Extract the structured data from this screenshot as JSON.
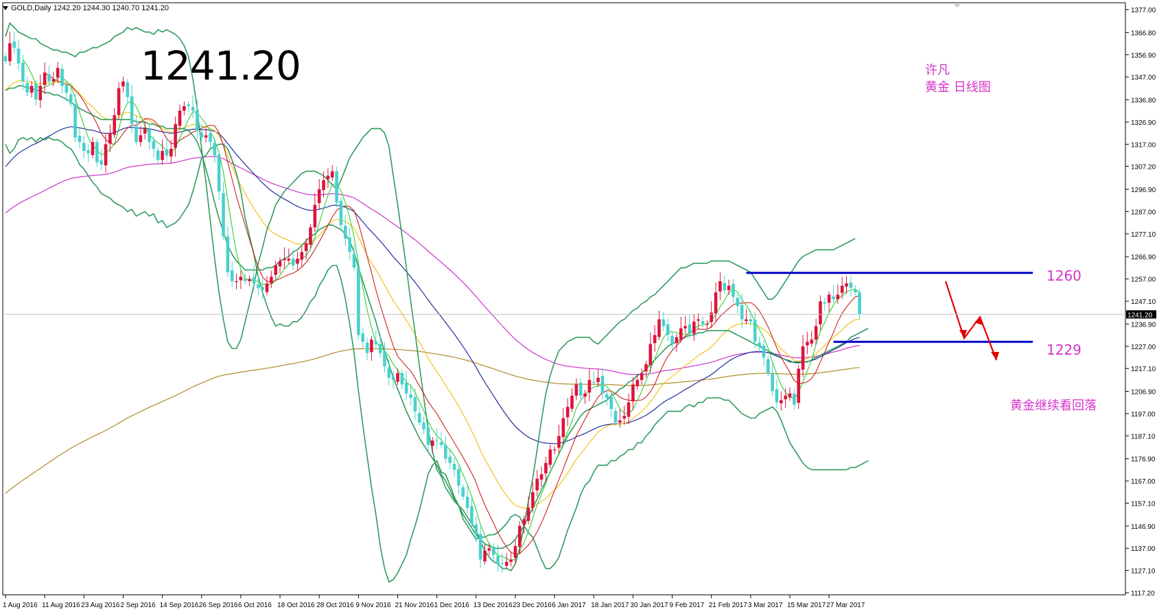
{
  "header": {
    "symbol": "GOLD,Daily",
    "ohlc": "1242.20 1244.30 1240.70 1241.20"
  },
  "big_price": "1241.20",
  "annotations": {
    "author": "许凡",
    "subtitle": "黄金 日线图",
    "resistance": "1260",
    "support": "1229",
    "outlook": "黄金继续看回落"
  },
  "current_price_label": "1241.20",
  "colors": {
    "bull": "#dc143c",
    "bear": "#48d1cc",
    "bollinger": "#2e9a5e",
    "ma_fast": "#32cd32",
    "ma_red": "#cc1f1f",
    "ma_yellow": "#f0c419",
    "ma_blue": "#1f2e9c",
    "ma_magenta": "#cc33cc",
    "ma_olive": "#b08a28",
    "levels": "#0000cc",
    "arrows": "#e00000",
    "annotation": "#d633cc"
  },
  "chart_data": {
    "type": "candlestick",
    "title": "GOLD,Daily",
    "ylim": [
      1117.2,
      1377.0
    ],
    "y_ticks": [
      "1377.00",
      "1366.80",
      "1356.90",
      "1347.00",
      "1336.80",
      "1326.90",
      "1317.00",
      "1307.20",
      "1296.90",
      "1287.00",
      "1277.10",
      "1266.90",
      "1257.00",
      "1247.10",
      "1236.90",
      "1227.00",
      "1217.10",
      "1206.90",
      "1197.00",
      "1187.10",
      "1176.90",
      "1167.00",
      "1157.10",
      "1146.90",
      "1137.00",
      "1127.10",
      "1117.20"
    ],
    "x_ticks": [
      "1 Aug 2016",
      "11 Aug 2016",
      "23 Aug 2016",
      "2 Sep 2016",
      "14 Sep 2016",
      "26 Sep 2016",
      "6 Oct 2016",
      "18 Oct 2016",
      "28 Oct 2016",
      "9 Nov 2016",
      "21 Nov 2016",
      "1 Dec 2016",
      "13 Dec 2016",
      "23 Dec 2016",
      "6 Jan 2017",
      "18 Jan 2017",
      "30 Jan 2017",
      "9 Feb 2017",
      "21 Feb 2017",
      "3 Mar 2017",
      "15 Mar 2017",
      "27 Mar 2017"
    ],
    "close": [
      1354,
      1362,
      1360,
      1353,
      1345,
      1340,
      1343,
      1337,
      1343,
      1349,
      1345,
      1346,
      1351,
      1343,
      1340,
      1335,
      1320,
      1318,
      1314,
      1313,
      1318,
      1309,
      1308,
      1317,
      1322,
      1330,
      1342,
      1345,
      1338,
      1326,
      1318,
      1321,
      1324,
      1318,
      1315,
      1310,
      1314,
      1312,
      1315,
      1326,
      1332,
      1334,
      1334,
      1332,
      1323,
      1320,
      1321,
      1318,
      1312,
      1296,
      1276,
      1260,
      1256,
      1256,
      1258,
      1256,
      1257,
      1255,
      1253,
      1252,
      1255,
      1258,
      1263,
      1265,
      1266,
      1266,
      1263,
      1266,
      1269,
      1273,
      1280,
      1290,
      1297,
      1301,
      1303,
      1305,
      1291,
      1281,
      1275,
      1269,
      1262,
      1232,
      1229,
      1224,
      1230,
      1228,
      1224,
      1218,
      1213,
      1212,
      1215,
      1210,
      1206,
      1204,
      1198,
      1193,
      1190,
      1183,
      1185,
      1185,
      1183,
      1177,
      1175,
      1172,
      1165,
      1160,
      1155,
      1148,
      1143,
      1132,
      1136,
      1137,
      1134,
      1130,
      1130,
      1131,
      1132,
      1138,
      1147,
      1150,
      1155,
      1162,
      1168,
      1170,
      1175,
      1181,
      1181,
      1187,
      1195,
      1200,
      1205,
      1210,
      1205,
      1206,
      1212,
      1211,
      1213,
      1206,
      1204,
      1199,
      1193,
      1194,
      1196,
      1202,
      1210,
      1212,
      1215,
      1219,
      1228,
      1232,
      1239,
      1236,
      1232,
      1228,
      1231,
      1235,
      1236,
      1233,
      1238,
      1239,
      1237,
      1237,
      1242,
      1251,
      1256,
      1252,
      1254,
      1249,
      1245,
      1239,
      1239,
      1238,
      1229,
      1227,
      1222,
      1215,
      1207,
      1202,
      1203,
      1205,
      1206,
      1201,
      1217,
      1227,
      1229,
      1230,
      1236,
      1247,
      1246,
      1250,
      1248,
      1250,
      1254,
      1255,
      1253,
      1251,
      1241.2
    ],
    "series": [
      {
        "name": "Bollinger Upper",
        "y": [
          1365,
          1371,
          1369,
          1367,
          1366,
          1365,
          1364,
          1364,
          1362,
          1361,
          1360,
          1359,
          1359,
          1358,
          1358,
          1357,
          1356,
          1358,
          1358,
          1359,
          1360,
          1360,
          1361,
          1362,
          1363,
          1365,
          1366,
          1367,
          1369,
          1368,
          1369,
          1368,
          1367,
          1367,
          1366,
          1368,
          1367,
          1368,
          1367,
          1366,
          1364,
          1361,
          1356,
          1346,
          1333,
          1315,
          1300,
          1283,
          1266,
          1251,
          1239,
          1229,
          1226,
          1226,
          1230,
          1238,
          1246,
          1254,
          1264,
          1271,
          1279,
          1284,
          1290,
          1293,
          1296,
          1298,
          1300,
          1302,
          1304,
          1305,
          1305,
          1305,
          1304,
          1303,
          1301,
          1299,
          1297,
          1301,
          1306,
          1311,
          1314,
          1317,
          1320,
          1322,
          1324,
          1324,
          1324,
          1322,
          1316,
          1303,
          1290,
          1276,
          1262,
          1247,
          1233,
          1218,
          1204,
          1190,
          1180,
          1172,
          1169,
          1164,
          1161,
          1158,
          1156,
          1154,
          1151,
          1148,
          1145,
          1140,
          1136,
          1133,
          1131,
          1130,
          1128,
          1128,
          1127,
          1130,
          1137,
          1147,
          1158,
          1168,
          1181,
          1194,
          1206,
          1214,
          1220,
          1225,
          1227,
          1229,
          1230,
          1231,
          1231,
          1231,
          1231,
          1229,
          1228,
          1230,
          1232,
          1234,
          1236,
          1238,
          1239,
          1241,
          1243,
          1244,
          1246,
          1247,
          1249,
          1250,
          1252,
          1254,
          1256,
          1258,
          1260,
          1262,
          1262,
          1263,
          1264,
          1264,
          1264,
          1264,
          1265,
          1265,
          1265,
          1265,
          1265,
          1264,
          1263,
          1262,
          1261,
          1260,
          1257,
          1254,
          1251,
          1248,
          1248,
          1250,
          1253,
          1256,
          1259,
          1262,
          1265,
          1267,
          1268,
          1269,
          1270,
          1270,
          1270,
          1270,
          1270,
          1271,
          1272,
          1273,
          1274,
          1275
        ]
      },
      {
        "name": "Bollinger Middle",
        "y": [
          1341,
          1342,
          1342,
          1343,
          1343,
          1342,
          1342,
          1341,
          1341,
          1340,
          1340,
          1339,
          1339,
          1338,
          1337,
          1336,
          1334,
          1333,
          1332,
          1331,
          1330,
          1329,
          1328,
          1328,
          1328,
          1328,
          1328,
          1328,
          1328,
          1328,
          1327,
          1327,
          1327,
          1326,
          1326,
          1325,
          1325,
          1324,
          1324,
          1324,
          1324,
          1324,
          1323,
          1321,
          1318,
          1313,
          1306,
          1299,
          1291,
          1284,
          1278,
          1272,
          1268,
          1265,
          1263,
          1261,
          1261,
          1261,
          1261,
          1261,
          1262,
          1262,
          1263,
          1265,
          1266,
          1267,
          1269,
          1270,
          1272,
          1274,
          1276,
          1277,
          1279,
          1280,
          1281,
          1281,
          1280,
          1279,
          1277,
          1274,
          1269,
          1262,
          1256,
          1250,
          1244,
          1238,
          1231,
          1225,
          1219,
          1213,
          1208,
          1203,
          1198,
          1194,
          1190,
          1186,
          1183,
          1180,
          1177,
          1174,
          1170,
          1167,
          1163,
          1159,
          1156,
          1152,
          1149,
          1146,
          1143,
          1141,
          1139,
          1138,
          1137,
          1137,
          1137,
          1138,
          1139,
          1141,
          1144,
          1147,
          1151,
          1155,
          1159,
          1163,
          1167,
          1171,
          1175,
          1179,
          1183,
          1187,
          1190,
          1193,
          1196,
          1198,
          1199,
          1200,
          1201,
          1202,
          1203,
          1205,
          1206,
          1208,
          1209,
          1211,
          1212,
          1214,
          1215,
          1217,
          1219,
          1221,
          1223,
          1225,
          1227,
          1228,
          1229,
          1230,
          1231,
          1232,
          1232,
          1233,
          1233,
          1234,
          1234,
          1234,
          1234,
          1234,
          1234,
          1233,
          1232,
          1231,
          1230,
          1229,
          1228,
          1227,
          1226,
          1225,
          1224,
          1223,
          1222,
          1221,
          1220,
          1220,
          1220,
          1220,
          1220,
          1221,
          1222,
          1223,
          1224,
          1225,
          1226,
          1227,
          1228,
          1229,
          1231,
          1232,
          1233,
          1234,
          1235
        ]
      },
      {
        "name": "Bollinger Lower",
        "y": [
          1317,
          1313,
          1315,
          1319,
          1320,
          1319,
          1320,
          1318,
          1320,
          1319,
          1320,
          1319,
          1319,
          1318,
          1316,
          1315,
          1312,
          1308,
          1306,
          1303,
          1300,
          1298,
          1295,
          1294,
          1293,
          1291,
          1290,
          1289,
          1287,
          1288,
          1285,
          1286,
          1287,
          1285,
          1286,
          1282,
          1283,
          1280,
          1281,
          1282,
          1284,
          1287,
          1290,
          1296,
          1303,
          1311,
          1312,
          1315,
          1316,
          1317,
          1317,
          1315,
          1310,
          1304,
          1296,
          1284,
          1276,
          1268,
          1258,
          1251,
          1245,
          1240,
          1236,
          1237,
          1236,
          1236,
          1238,
          1238,
          1240,
          1243,
          1247,
          1249,
          1254,
          1257,
          1261,
          1263,
          1263,
          1257,
          1248,
          1237,
          1224,
          1207,
          1192,
          1178,
          1164,
          1152,
          1138,
          1128,
          1122,
          1123,
          1126,
          1130,
          1134,
          1141,
          1147,
          1154,
          1162,
          1170,
          1174,
          1176,
          1171,
          1170,
          1165,
          1160,
          1156,
          1150,
          1147,
          1144,
          1141,
          1142,
          1142,
          1143,
          1143,
          1144,
          1146,
          1148,
          1151,
          1152,
          1151,
          1147,
          1144,
          1142,
          1137,
          1132,
          1128,
          1128,
          1130,
          1133,
          1139,
          1145,
          1150,
          1155,
          1161,
          1165,
          1167,
          1171,
          1174,
          1174,
          1174,
          1176,
          1176,
          1178,
          1179,
          1181,
          1181,
          1184,
          1184,
          1187,
          1189,
          1192,
          1194,
          1196,
          1198,
          1198,
          1198,
          1198,
          1200,
          1201,
          1200,
          1202,
          1202,
          1204,
          1204,
          1204,
          1204,
          1203,
          1203,
          1201,
          1199,
          1197,
          1196,
          1195,
          1195,
          1197,
          1198,
          1199,
          1200,
          1198,
          1194,
          1189,
          1184,
          1181,
          1178,
          1175,
          1173,
          1172,
          1172,
          1172,
          1172,
          1172,
          1172,
          1172,
          1172,
          1172,
          1173,
          1173,
          1174,
          1175,
          1176
        ]
      }
    ],
    "moving_averages": [
      {
        "name": "MA fast (green)",
        "color": "#32cd32"
      },
      {
        "name": "MA (red)",
        "color": "#cc1f1f"
      },
      {
        "name": "MA (yellow)",
        "color": "#f0c419"
      },
      {
        "name": "MA (blue)",
        "color": "#1f2e9c"
      },
      {
        "name": "MA (magenta)",
        "color": "#cc33cc"
      },
      {
        "name": "MA (olive)",
        "color": "#b08a28"
      }
    ],
    "levels": [
      {
        "label": "1260",
        "price": 1259.7
      },
      {
        "label": "1229",
        "price": 1229.0
      }
    ],
    "current_price": 1241.2,
    "grid": false
  }
}
